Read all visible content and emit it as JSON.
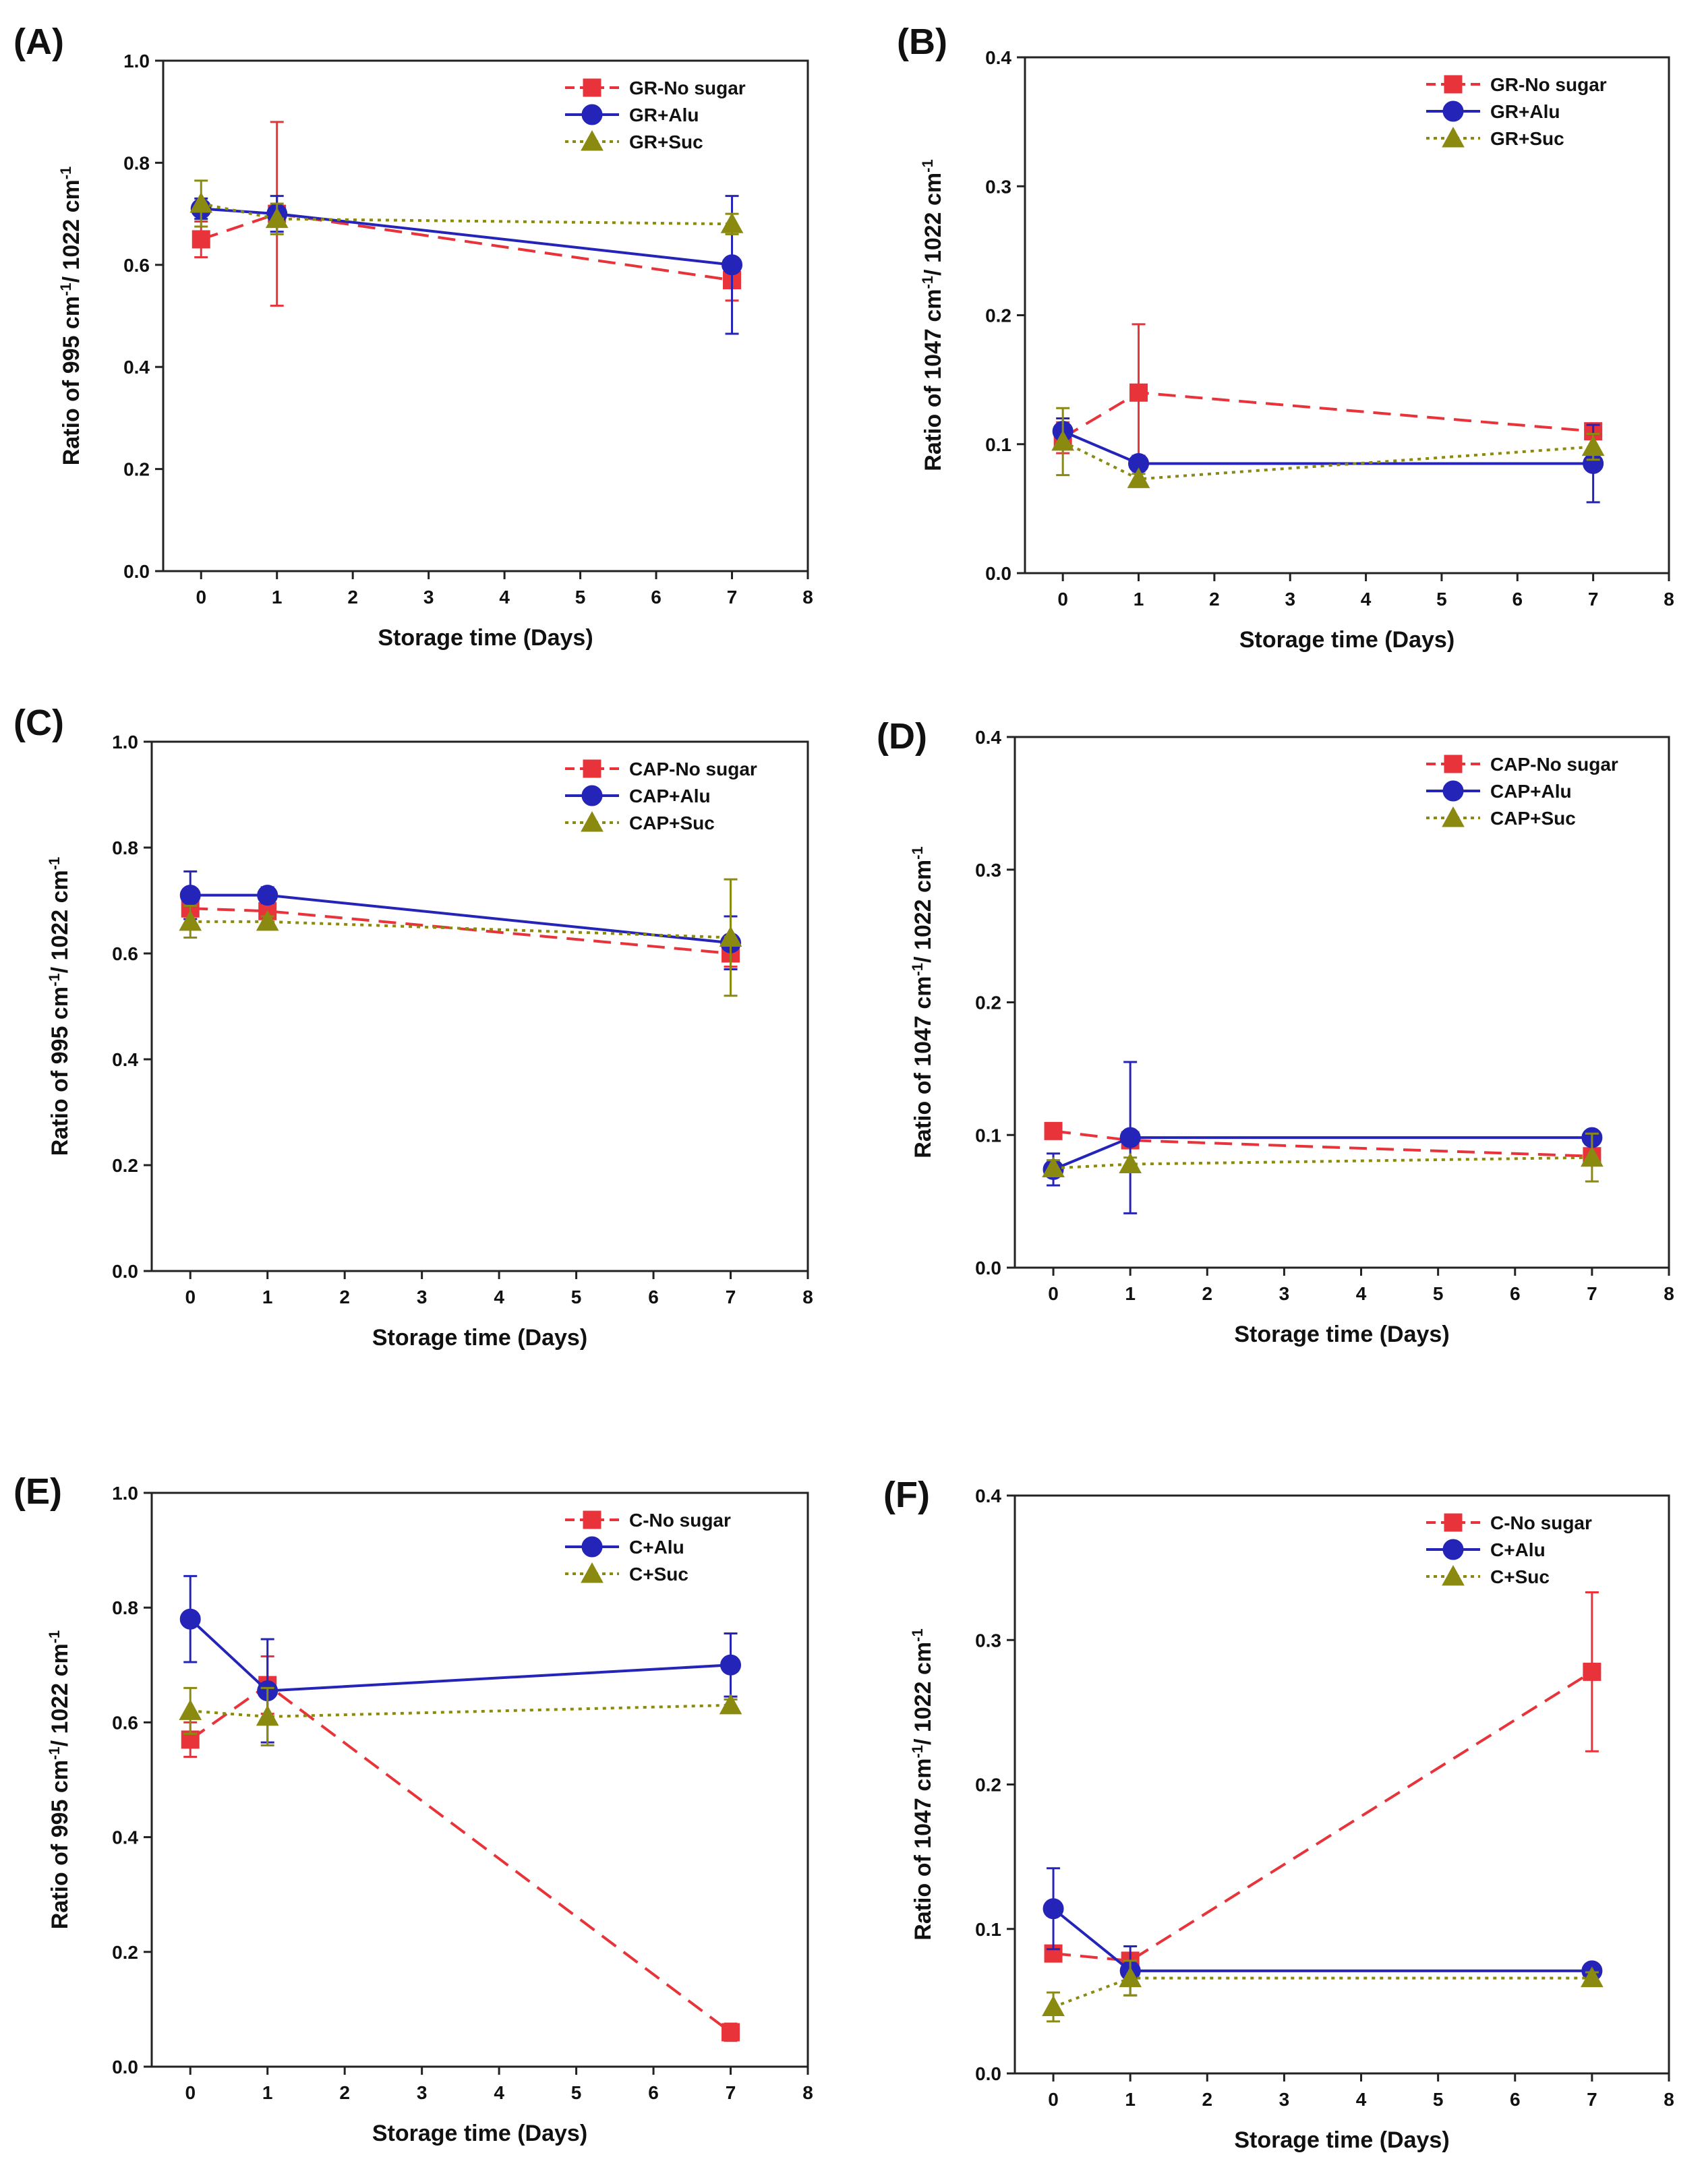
{
  "figure": {
    "panels": [
      "(A)",
      "(B)",
      "(C)",
      "(D)",
      "(E)",
      "(F)"
    ]
  },
  "chart_data": [
    {
      "panel": "(A)",
      "type": "line",
      "xlabel": "Storage time (Days)",
      "ylabel": "Ratio of 995 cm-1/ 1022 cm-1",
      "ylabel_parts": [
        "Ratio of 995 cm",
        "-1",
        "/ 1022 cm",
        "-1"
      ],
      "xlim": [
        -0.5,
        8
      ],
      "ylim": [
        0,
        1.0
      ],
      "xticks": [
        0,
        1,
        2,
        3,
        4,
        5,
        6,
        7,
        8
      ],
      "xtick_labels": [
        "0",
        "1",
        "2",
        "3",
        "4",
        "5",
        "6",
        "7",
        "8"
      ],
      "yticks": [
        0,
        0.2,
        0.4,
        0.6,
        0.8,
        1.0
      ],
      "ytick_labels": [
        "0.0",
        "0.2",
        "0.4",
        "0.6",
        "0.8",
        "1.0"
      ],
      "legend_position": "top-right",
      "x": [
        0,
        1,
        7
      ],
      "series": [
        {
          "name": "GR-No sugar",
          "color": "#e8333a",
          "marker": "square",
          "dash": "dashed",
          "values": [
            0.65,
            0.7,
            0.57
          ],
          "errors": [
            0.035,
            0.18,
            0.04
          ]
        },
        {
          "name": "GR+Alu",
          "color": "#2424b8",
          "marker": "circle",
          "dash": "solid",
          "values": [
            0.71,
            0.7,
            0.6
          ],
          "errors": [
            0.02,
            0.035,
            0.135
          ]
        },
        {
          "name": "GR+Suc",
          "color": "#8a8a10",
          "marker": "triangle",
          "dash": "dotted",
          "values": [
            0.72,
            0.69,
            0.68
          ],
          "errors": [
            0.045,
            0.03,
            0.02
          ]
        }
      ]
    },
    {
      "panel": "(B)",
      "type": "line",
      "xlabel": "Storage time (Days)",
      "ylabel": "Ratio of 1047 cm-1/ 1022 cm-1",
      "ylabel_parts": [
        "Ratio of 1047 cm",
        "-1",
        "/ 1022 cm",
        "-1"
      ],
      "xlim": [
        -0.5,
        8
      ],
      "ylim": [
        0,
        0.4
      ],
      "xticks": [
        0,
        1,
        2,
        3,
        4,
        5,
        6,
        7,
        8
      ],
      "xtick_labels": [
        "0",
        "1",
        "2",
        "3",
        "4",
        "5",
        "6",
        "7",
        "8"
      ],
      "yticks": [
        0,
        0.1,
        0.2,
        0.3,
        0.4
      ],
      "ytick_labels": [
        "0.0",
        "0.1",
        "0.2",
        "0.3",
        "0.4"
      ],
      "legend_position": "top-right",
      "x": [
        0,
        1,
        7
      ],
      "series": [
        {
          "name": "GR-No sugar",
          "color": "#e8333a",
          "marker": "square",
          "dash": "dashed",
          "values": [
            0.105,
            0.14,
            0.11
          ],
          "errors": [
            0.012,
            0.053,
            0.005
          ]
        },
        {
          "name": "GR+Alu",
          "color": "#2424b8",
          "marker": "circle",
          "dash": "solid",
          "values": [
            0.11,
            0.085,
            0.085
          ],
          "errors": [
            0.01,
            0.006,
            0.03
          ]
        },
        {
          "name": "GR+Suc",
          "color": "#8a8a10",
          "marker": "triangle",
          "dash": "dotted",
          "values": [
            0.102,
            0.073,
            0.098
          ],
          "errors": [
            0.026,
            0.004,
            0.01
          ]
        }
      ]
    },
    {
      "panel": "(C)",
      "type": "line",
      "xlabel": "Storage time (Days)",
      "ylabel": "Ratio of 995 cm-1/ 1022 cm-1",
      "ylabel_parts": [
        "Ratio of 995 cm",
        "-1",
        "/ 1022 cm",
        "-1"
      ],
      "xlim": [
        -0.5,
        8
      ],
      "ylim": [
        0,
        1.0
      ],
      "xticks": [
        0,
        1,
        2,
        3,
        4,
        5,
        6,
        7,
        8
      ],
      "xtick_labels": [
        "0",
        "1",
        "2",
        "3",
        "4",
        "5",
        "6",
        "7",
        "8"
      ],
      "yticks": [
        0,
        0.2,
        0.4,
        0.6,
        0.8,
        1.0
      ],
      "ytick_labels": [
        "0.0",
        "0.2",
        "0.4",
        "0.6",
        "0.8",
        "1.0"
      ],
      "legend_position": "top-right",
      "x": [
        0,
        1,
        7
      ],
      "series": [
        {
          "name": "CAP-No sugar",
          "color": "#e8333a",
          "marker": "square",
          "dash": "dashed",
          "values": [
            0.685,
            0.68,
            0.6
          ],
          "errors": [
            0.02,
            0.015,
            0.025
          ]
        },
        {
          "name": "CAP+Alu",
          "color": "#2424b8",
          "marker": "circle",
          "dash": "solid",
          "values": [
            0.71,
            0.71,
            0.62
          ],
          "errors": [
            0.045,
            0.015,
            0.05
          ]
        },
        {
          "name": "CAP+Suc",
          "color": "#8a8a10",
          "marker": "triangle",
          "dash": "dotted",
          "values": [
            0.66,
            0.66,
            0.63
          ],
          "errors": [
            0.03,
            0.01,
            0.11
          ]
        }
      ]
    },
    {
      "panel": "(D)",
      "type": "line",
      "xlabel": "Storage time (Days)",
      "ylabel": "Ratio of 1047 cm-1/ 1022 cm-1",
      "ylabel_parts": [
        "Ratio of 1047 cm",
        "-1",
        "/ 1022 cm",
        "-1"
      ],
      "xlim": [
        -0.5,
        8
      ],
      "ylim": [
        0,
        0.4
      ],
      "xticks": [
        0,
        1,
        2,
        3,
        4,
        5,
        6,
        7,
        8
      ],
      "xtick_labels": [
        "0",
        "1",
        "2",
        "3",
        "4",
        "5",
        "6",
        "7",
        "8"
      ],
      "yticks": [
        0,
        0.1,
        0.2,
        0.3,
        0.4
      ],
      "ytick_labels": [
        "0.0",
        "0.1",
        "0.2",
        "0.3",
        "0.4"
      ],
      "legend_position": "top-right",
      "x": [
        0,
        1,
        7
      ],
      "series": [
        {
          "name": "CAP-No sugar",
          "color": "#e8333a",
          "marker": "square",
          "dash": "dashed",
          "values": [
            0.103,
            0.096,
            0.084
          ],
          "errors": [
            0.003,
            0.003,
            0.004
          ]
        },
        {
          "name": "CAP+Alu",
          "color": "#2424b8",
          "marker": "circle",
          "dash": "solid",
          "values": [
            0.074,
            0.098,
            0.098
          ],
          "errors": [
            0.012,
            0.057,
            0.003
          ]
        },
        {
          "name": "CAP+Suc",
          "color": "#8a8a10",
          "marker": "triangle",
          "dash": "dotted",
          "values": [
            0.075,
            0.078,
            0.083
          ],
          "errors": [
            0.006,
            0.005,
            0.018
          ]
        }
      ]
    },
    {
      "panel": "(E)",
      "type": "line",
      "xlabel": "Storage time (Days)",
      "ylabel": "Ratio of 995 cm-1/ 1022 cm-1",
      "ylabel_parts": [
        "Ratio of 995 cm",
        "-1",
        "/ 1022 cm",
        "-1"
      ],
      "xlim": [
        -0.5,
        8
      ],
      "ylim": [
        0,
        1.0
      ],
      "xticks": [
        0,
        1,
        2,
        3,
        4,
        5,
        6,
        7,
        8
      ],
      "xtick_labels": [
        "0",
        "1",
        "2",
        "3",
        "4",
        "5",
        "6",
        "7",
        "8"
      ],
      "yticks": [
        0,
        0.2,
        0.4,
        0.6,
        0.8,
        1.0
      ],
      "ytick_labels": [
        "0.0",
        "0.2",
        "0.4",
        "0.6",
        "0.8",
        "1.0"
      ],
      "legend_position": "top-right",
      "x": [
        0,
        1,
        7
      ],
      "series": [
        {
          "name": "C-No sugar",
          "color": "#e8333a",
          "marker": "square",
          "dash": "dashed",
          "values": [
            0.57,
            0.665,
            0.06
          ],
          "errors": [
            0.03,
            0.05,
            0.015
          ]
        },
        {
          "name": "C+Alu",
          "color": "#2424b8",
          "marker": "circle",
          "dash": "solid",
          "values": [
            0.78,
            0.655,
            0.7
          ],
          "errors": [
            0.075,
            0.09,
            0.055
          ]
        },
        {
          "name": "C+Suc",
          "color": "#8a8a10",
          "marker": "triangle",
          "dash": "dotted",
          "values": [
            0.62,
            0.61,
            0.63
          ],
          "errors": [
            0.04,
            0.05,
            0.01
          ]
        }
      ]
    },
    {
      "panel": "(F)",
      "type": "line",
      "xlabel": "Storage time (Days)",
      "ylabel": "Ratio of 1047 cm-1/ 1022 cm-1",
      "ylabel_parts": [
        "Ratio of 1047 cm",
        "-1",
        "/ 1022 cm",
        "-1"
      ],
      "xlim": [
        -0.5,
        8
      ],
      "ylim": [
        0,
        0.4
      ],
      "xticks": [
        0,
        1,
        2,
        3,
        4,
        5,
        6,
        7,
        8
      ],
      "xtick_labels": [
        "0",
        "1",
        "2",
        "3",
        "4",
        "5",
        "6",
        "7",
        "8"
      ],
      "yticks": [
        0,
        0.1,
        0.2,
        0.3,
        0.4
      ],
      "ytick_labels": [
        "0.0",
        "0.1",
        "0.2",
        "0.3",
        "0.4"
      ],
      "legend_position": "top-right",
      "x": [
        0,
        1,
        7
      ],
      "series": [
        {
          "name": "C-No sugar",
          "color": "#e8333a",
          "marker": "square",
          "dash": "dashed",
          "values": [
            0.083,
            0.078,
            0.278
          ],
          "errors": [
            0.004,
            0.005,
            0.055
          ]
        },
        {
          "name": "C+Alu",
          "color": "#2424b8",
          "marker": "circle",
          "dash": "solid",
          "values": [
            0.114,
            0.071,
            0.071
          ],
          "errors": [
            0.028,
            0.017,
            0.003
          ]
        },
        {
          "name": "C+Suc",
          "color": "#8a8a10",
          "marker": "triangle",
          "dash": "dotted",
          "values": [
            0.046,
            0.066,
            0.066
          ],
          "errors": [
            0.01,
            0.012,
            0.004
          ]
        }
      ]
    }
  ]
}
